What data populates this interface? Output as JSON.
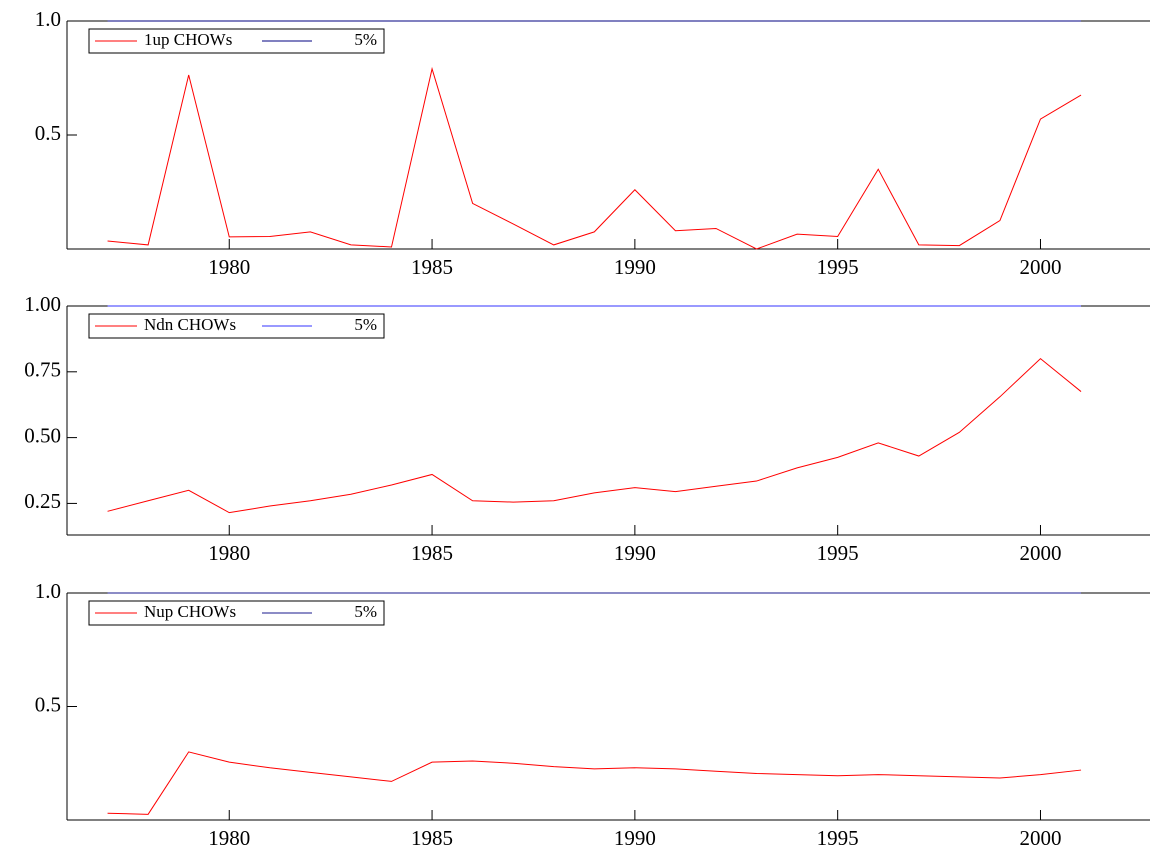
{
  "chart_data": [
    {
      "type": "line",
      "x": [
        1977,
        1978,
        1979,
        1980,
        1981,
        1982,
        1983,
        1984,
        1985,
        1986,
        1987,
        1988,
        1989,
        1990,
        1991,
        1992,
        1993,
        1994,
        1995,
        1996,
        1997,
        1998,
        1999,
        2000,
        2001
      ],
      "series": [
        {
          "name": "1up CHOWs",
          "color": "#ff0000",
          "values": [
            0.035,
            0.018,
            0.763,
            0.053,
            0.055,
            0.075,
            0.018,
            0.009,
            0.79,
            0.2,
            0.11,
            0.018,
            0.075,
            0.26,
            0.08,
            0.09,
            0.0,
            0.065,
            0.055,
            0.35,
            0.018,
            0.015,
            0.125,
            0.57,
            0.675
          ]
        },
        {
          "name": "5%",
          "color": "#000080",
          "values": [
            1,
            1,
            1,
            1,
            1,
            1,
            1,
            1,
            1,
            1,
            1,
            1,
            1,
            1,
            1,
            1,
            1,
            1,
            1,
            1,
            1,
            1,
            1,
            1,
            1
          ]
        }
      ],
      "xlim": [
        1976,
        2002.7
      ],
      "xticks": [
        1980,
        1985,
        1990,
        1995,
        2000
      ],
      "ylim": [
        0,
        1
      ],
      "yticks": [
        0.5,
        {
          "value": 1,
          "label": "1.0"
        }
      ],
      "grid": false,
      "legend": "upper left"
    },
    {
      "type": "line",
      "x": [
        1977,
        1978,
        1979,
        1980,
        1981,
        1982,
        1983,
        1984,
        1985,
        1986,
        1987,
        1988,
        1989,
        1990,
        1991,
        1992,
        1993,
        1994,
        1995,
        1996,
        1997,
        1998,
        1999,
        2000,
        2001
      ],
      "series": [
        {
          "name": "Ndn CHOWs",
          "color": "#ff0000",
          "values": [
            0.22,
            0.26,
            0.3,
            0.215,
            0.24,
            0.26,
            0.285,
            0.32,
            0.36,
            0.26,
            0.255,
            0.26,
            0.29,
            0.31,
            0.295,
            0.315,
            0.335,
            0.385,
            0.425,
            0.48,
            0.43,
            0.52,
            0.655,
            0.8,
            0.675
          ]
        },
        {
          "name": "5%",
          "color": "#3333ff",
          "values": [
            1,
            1,
            1,
            1,
            1,
            1,
            1,
            1,
            1,
            1,
            1,
            1,
            1,
            1,
            1,
            1,
            1,
            1,
            1,
            1,
            1,
            1,
            1,
            1,
            1
          ]
        }
      ],
      "xlim": [
        1976,
        2002.7
      ],
      "xticks": [
        1980,
        1985,
        1990,
        1995,
        2000
      ],
      "ylim": [
        0.13,
        1
      ],
      "yticks": [
        0.25,
        {
          "value": 0.5,
          "label": "0.50"
        },
        0.75,
        {
          "value": 1,
          "label": "1.00"
        }
      ],
      "grid": false,
      "legend": "upper left"
    },
    {
      "type": "line",
      "x": [
        1977,
        1978,
        1979,
        1980,
        1981,
        1982,
        1983,
        1984,
        1985,
        1986,
        1987,
        1988,
        1989,
        1990,
        1991,
        1992,
        1993,
        1994,
        1995,
        1996,
        1997,
        1998,
        1999,
        2000,
        2001
      ],
      "series": [
        {
          "name": "Nup CHOWs",
          "color": "#ff0000",
          "values": [
            0.03,
            0.025,
            0.3,
            0.255,
            0.23,
            0.21,
            0.19,
            0.17,
            0.255,
            0.26,
            0.25,
            0.235,
            0.225,
            0.23,
            0.225,
            0.215,
            0.205,
            0.2,
            0.195,
            0.2,
            0.195,
            0.19,
            0.185,
            0.2,
            0.22
          ]
        },
        {
          "name": "5%",
          "color": "#1a1a8c",
          "values": [
            1,
            1,
            1,
            1,
            1,
            1,
            1,
            1,
            1,
            1,
            1,
            1,
            1,
            1,
            1,
            1,
            1,
            1,
            1,
            1,
            1,
            1,
            1,
            1,
            1
          ]
        }
      ],
      "xlim": [
        1976,
        2002.7
      ],
      "xticks": [
        1980,
        1985,
        1990,
        1995,
        2000
      ],
      "ylim": [
        0,
        1
      ],
      "yticks": [
        0.5,
        {
          "value": 1,
          "label": "1.0"
        }
      ],
      "grid": false,
      "legend": "upper left"
    }
  ]
}
